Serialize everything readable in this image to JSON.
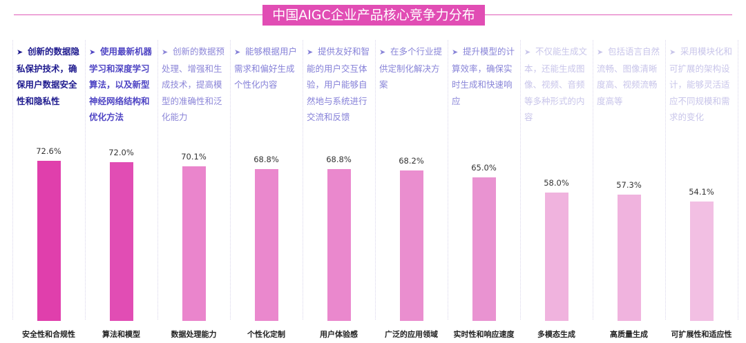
{
  "chart_data": {
    "type": "bar",
    "title": "中国AIGC企业产品核心竞争力分布",
    "categories": [
      "安全性和合规性",
      "算法和模型",
      "数据处理能力",
      "个性化定制",
      "用户体验感",
      "广泛的应用领域",
      "实时性和响应速度",
      "多模态生成",
      "高质量生成",
      "可扩展性和适应性"
    ],
    "values": [
      72.6,
      72.0,
      70.1,
      68.8,
      68.8,
      68.2,
      65.0,
      58.0,
      57.3,
      54.1
    ],
    "value_labels": [
      "72.6%",
      "72.0%",
      "70.1%",
      "68.8%",
      "68.8%",
      "68.2%",
      "65.0%",
      "58.0%",
      "57.3%",
      "54.1%"
    ],
    "unit": "%",
    "ylim": [
      0,
      100
    ],
    "grid": false,
    "legend": "none",
    "descriptions": [
      "创新的数据隐私保护技术，确保用户数据安全性和隐私性",
      "使用最新机器学习和深度学习算法，以及新型神经网络结构和优化方法",
      "创新的数据预处理、增强和生成技术，提高模型的准确性和泛化能力",
      "能够根据用户需求和偏好生成个性化内容",
      "提供友好和智能的用户交互体验，用户能够自然地与系统进行交流和反馈",
      "在多个行业提供定制化解决方案",
      "提升模型的计算效率，确保实时生成和快速响应",
      "不仅能生成文本，还能生成图像、视频、音频等多种形式的内容",
      "包括语言自然流畅、图像清晰度高、视频流畅度高等",
      "采用模块化和可扩展的架构设计，能够灵活适应不同规模和需求的变化"
    ],
    "bar_colors": [
      "#e03fac",
      "#e14db4",
      "#ea85cc",
      "#ea88cd",
      "#ea88cd",
      "#ea8ecf",
      "#e993d1",
      "#f0b3de",
      "#f0b3de",
      "#f2bfe3"
    ],
    "desc_colors": [
      "#1e1a8e",
      "#4f45c4",
      "#8c86d8",
      "#8580d8",
      "#8580d8",
      "#8985d8",
      "#8985d8",
      "#c8c5ea",
      "#c8c5ea",
      "#c8c5ea"
    ],
    "desc_bold": [
      true,
      true,
      false,
      false,
      false,
      false,
      false,
      false,
      false,
      false
    ]
  },
  "colors": {
    "title_bg": "#e14db4",
    "title_text": "#ffffff",
    "header_line": "#e05ab8",
    "divider": "#d8d4ea"
  },
  "icons": {
    "bullet": "arrow-right-icon"
  }
}
